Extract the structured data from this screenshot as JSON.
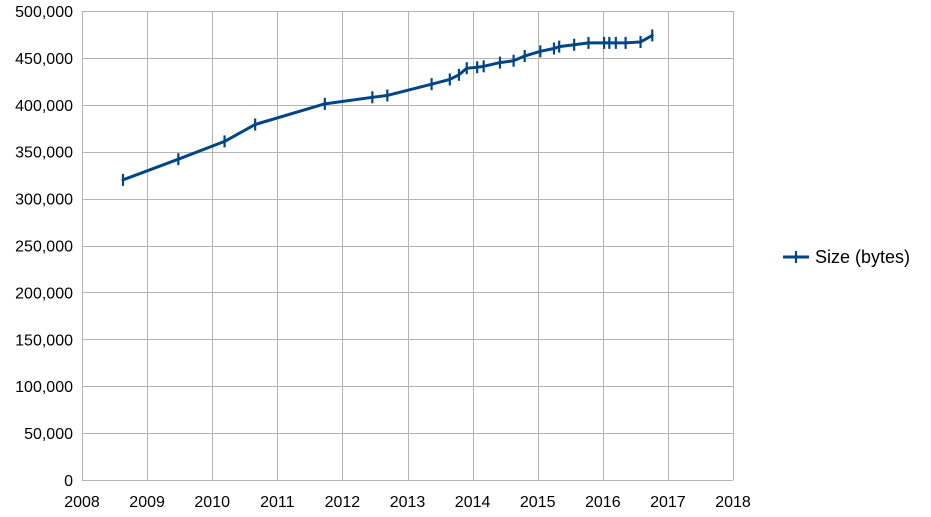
{
  "chart_data": {
    "type": "line",
    "series_color": "#004586",
    "grid": true,
    "legend_position": "right",
    "xlim": [
      2008,
      2018
    ],
    "ylim": [
      0,
      500000
    ],
    "x_ticks": [
      2008,
      2009,
      2010,
      2011,
      2012,
      2013,
      2014,
      2015,
      2016,
      2017,
      2018
    ],
    "x_tick_labels": [
      "2008",
      "2009",
      "2010",
      "2011",
      "2012",
      "2013",
      "2014",
      "2015",
      "2016",
      "2017",
      "2018"
    ],
    "y_ticks": [
      0,
      50000,
      100000,
      150000,
      200000,
      250000,
      300000,
      350000,
      400000,
      450000,
      500000
    ],
    "y_tick_labels": [
      "0",
      "50,000",
      "100,000",
      "150,000",
      "200,000",
      "250,000",
      "300,000",
      "350,000",
      "400,000",
      "450,000",
      "500,000"
    ],
    "series": [
      {
        "name": "Size (bytes)",
        "marker": "plus",
        "x": [
          2008.63,
          2009.48,
          2010.19,
          2010.66,
          2011.73,
          2012.46,
          2012.69,
          2013.37,
          2013.65,
          2013.79,
          2013.91,
          2014.07,
          2014.17,
          2014.42,
          2014.63,
          2014.8,
          2015.04,
          2015.25,
          2015.33,
          2015.56,
          2015.78,
          2016.02,
          2016.1,
          2016.2,
          2016.35,
          2016.58,
          2016.76
        ],
        "values": [
          320000,
          342000,
          361000,
          379000,
          401000,
          408000,
          410000,
          422000,
          427000,
          432000,
          439000,
          440000,
          441000,
          445000,
          447000,
          452000,
          457000,
          460000,
          462000,
          464000,
          466000,
          466000,
          466000,
          466000,
          466000,
          467000,
          474000
        ]
      }
    ]
  }
}
